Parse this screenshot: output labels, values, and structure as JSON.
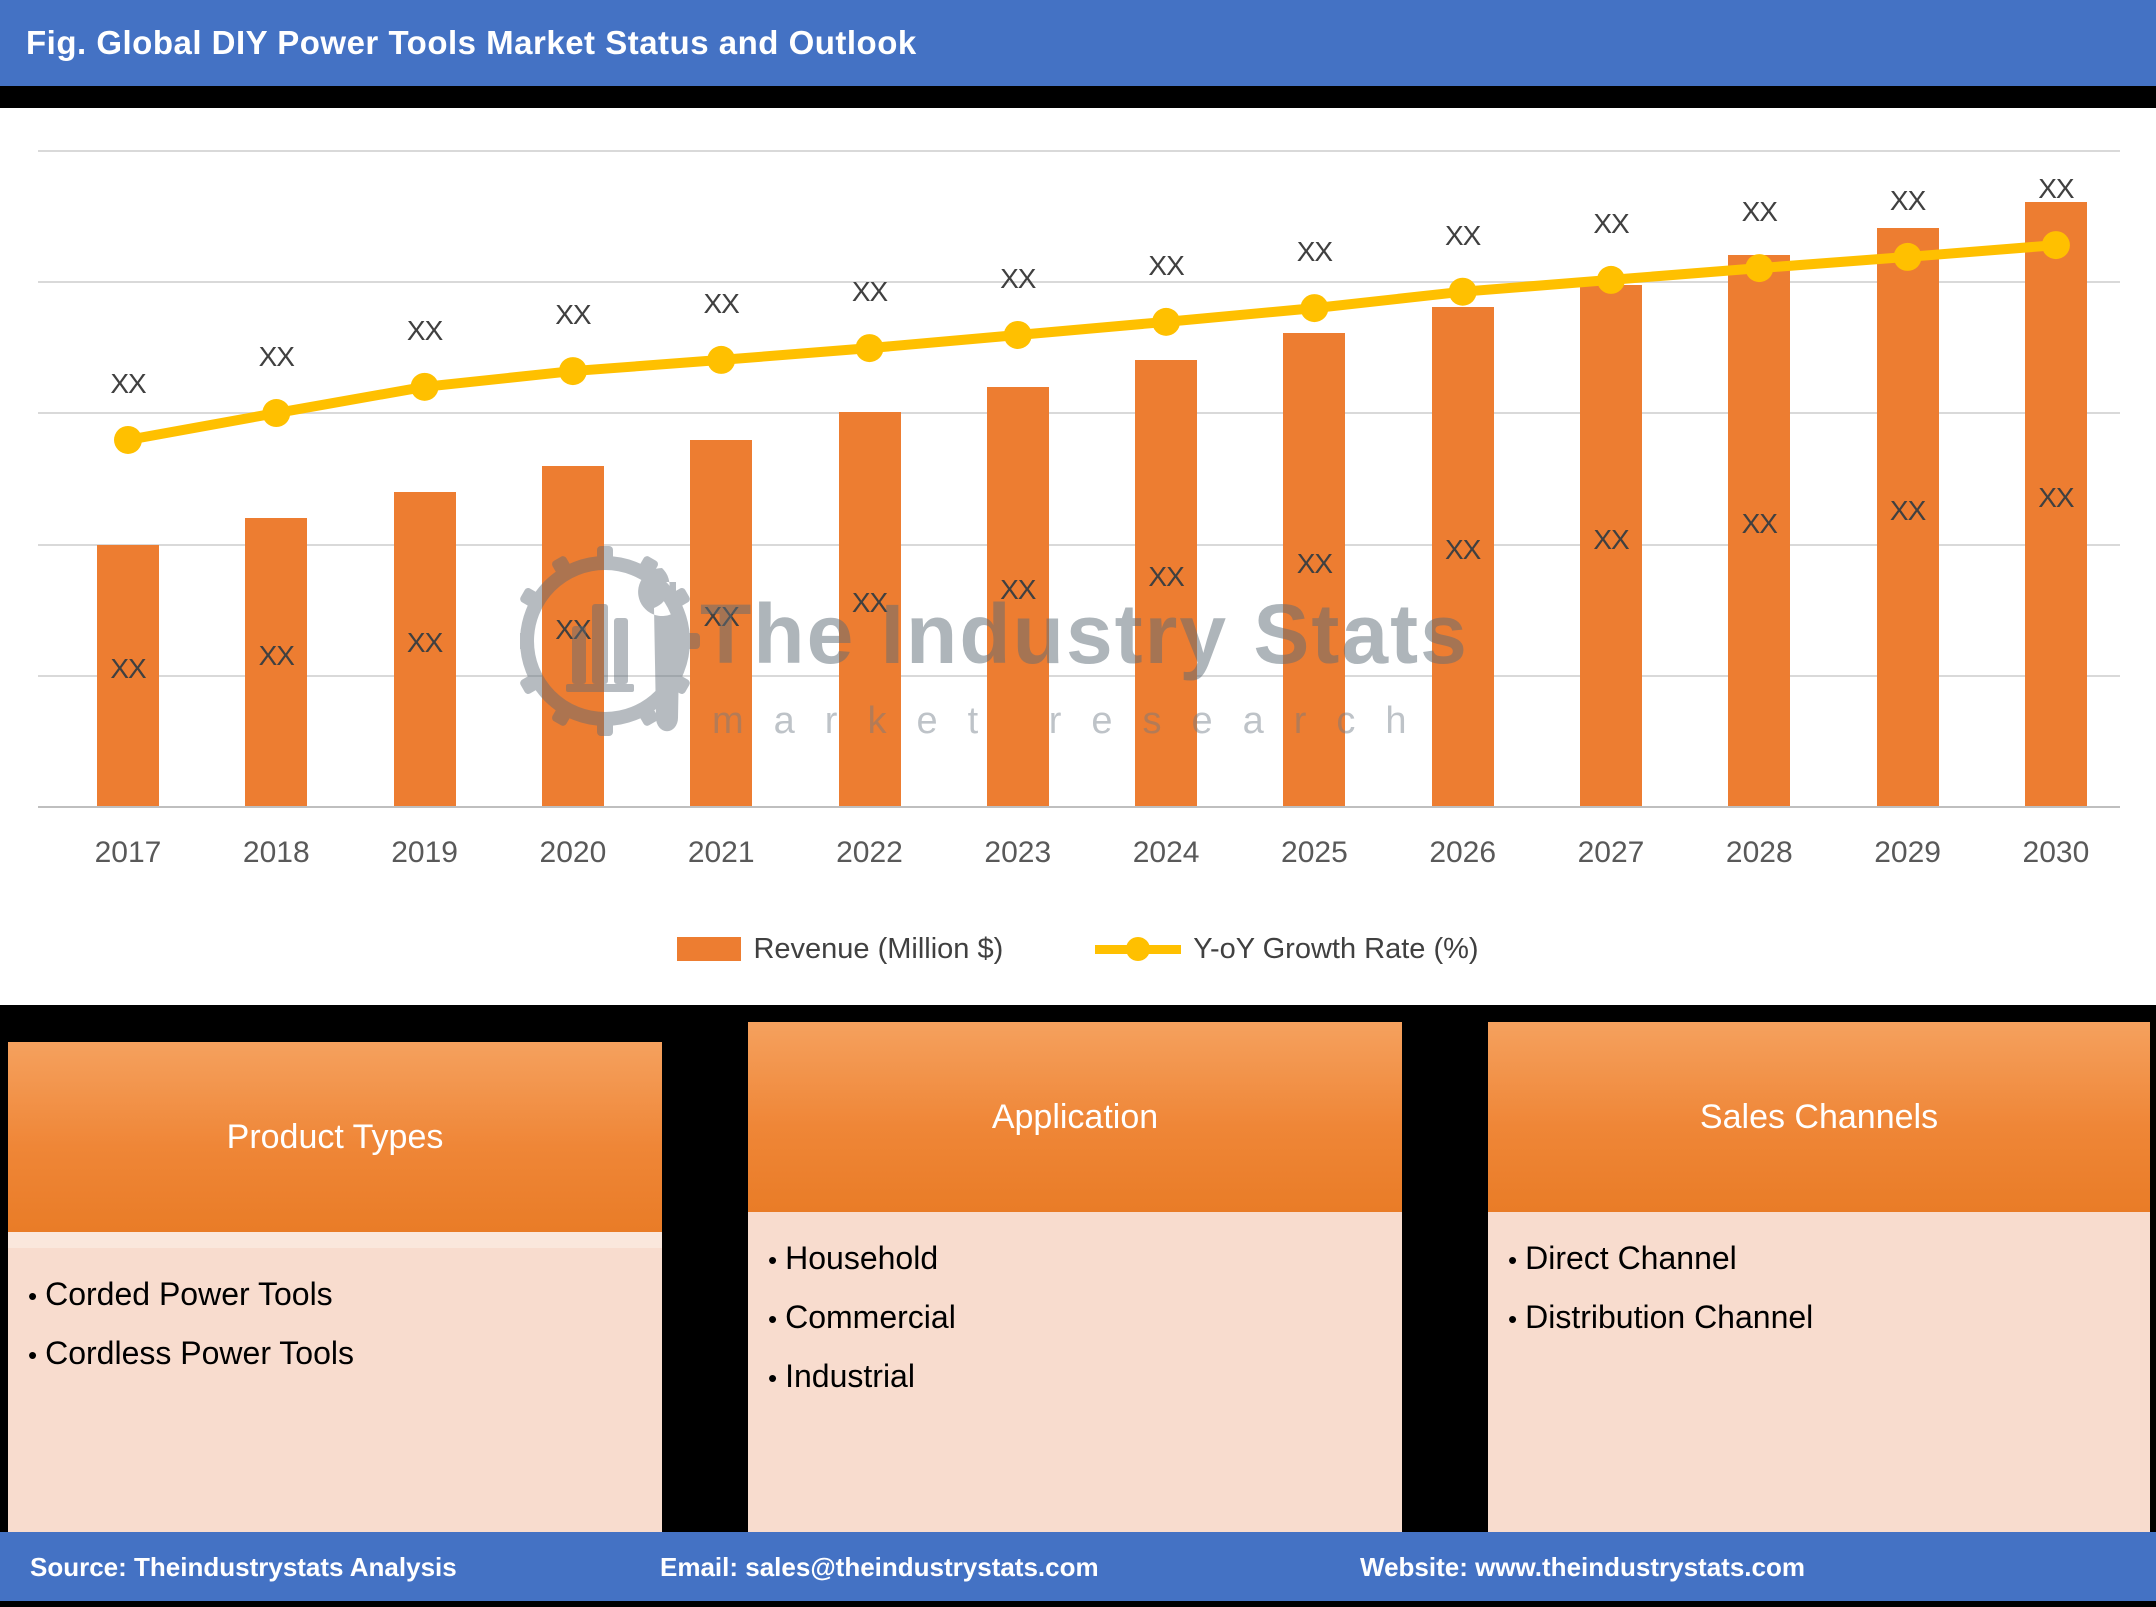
{
  "header": {
    "title": "Fig. Global DIY Power Tools Market Status and Outlook"
  },
  "watermark": {
    "line1": "The Industry Stats",
    "line2": "market research",
    "logo": "gear-buildings-wrench-icon"
  },
  "chart_data": {
    "type": "combo",
    "title": "Global DIY Power Tools Market Status and Outlook",
    "categories": [
      "2017",
      "2018",
      "2019",
      "2020",
      "2021",
      "2022",
      "2023",
      "2024",
      "2025",
      "2026",
      "2027",
      "2028",
      "2029",
      "2030"
    ],
    "value_labels_masked": true,
    "grid": "horizontal",
    "legend_position": "bottom",
    "series": [
      {
        "name": "Revenue (Million $)",
        "type": "bar",
        "color": "#ED7D31",
        "values": [
          "XX",
          "XX",
          "XX",
          "XX",
          "XX",
          "XX",
          "XX",
          "XX",
          "XX",
          "XX",
          "XX",
          "XX",
          "XX",
          "XX"
        ],
        "render_heights_pct": [
          39.8,
          43.9,
          47.9,
          51.8,
          55.8,
          60.1,
          63.9,
          68.0,
          72.1,
          76.1,
          79.4,
          84.0,
          88.1,
          92.1
        ]
      },
      {
        "name": "Y-oY Growth Rate (%)",
        "type": "line",
        "color": "#FFC000",
        "values": [
          "XX",
          "XX",
          "XX",
          "XX",
          "XX",
          "XX",
          "XX",
          "XX",
          "XX",
          "XX",
          "XX",
          "XX",
          "XX",
          "XX"
        ],
        "render_heights_pct": [
          55.8,
          59.9,
          63.9,
          66.3,
          68.0,
          69.8,
          71.8,
          73.8,
          75.9,
          78.4,
          80.2,
          82.0,
          83.7,
          85.5
        ]
      }
    ]
  },
  "legend": {
    "bar_label": "Revenue (Million $)",
    "line_label": "Y-oY Growth Rate (%)"
  },
  "panels": [
    {
      "title": "Product Types",
      "items": [
        "Corded Power Tools",
        "Cordless Power Tools"
      ]
    },
    {
      "title": "Application",
      "items": [
        "Household",
        "Commercial",
        "Industrial"
      ]
    },
    {
      "title": "Sales Channels",
      "items": [
        "Direct Channel",
        "Distribution Channel"
      ]
    }
  ],
  "footer": {
    "source": "Source: Theindustrystats Analysis",
    "email": "Email: sales@theindustrystats.com",
    "website": "Website: www.theindustrystats.com"
  },
  "colors": {
    "header_blue": "#4472C4",
    "bar_orange": "#ED7D31",
    "line_yellow": "#FFC000",
    "panel_body_peach": "#F8DCCE",
    "gridline_gray": "#D9D9D9",
    "label_gray": "#404040",
    "tick_gray": "#595959"
  }
}
